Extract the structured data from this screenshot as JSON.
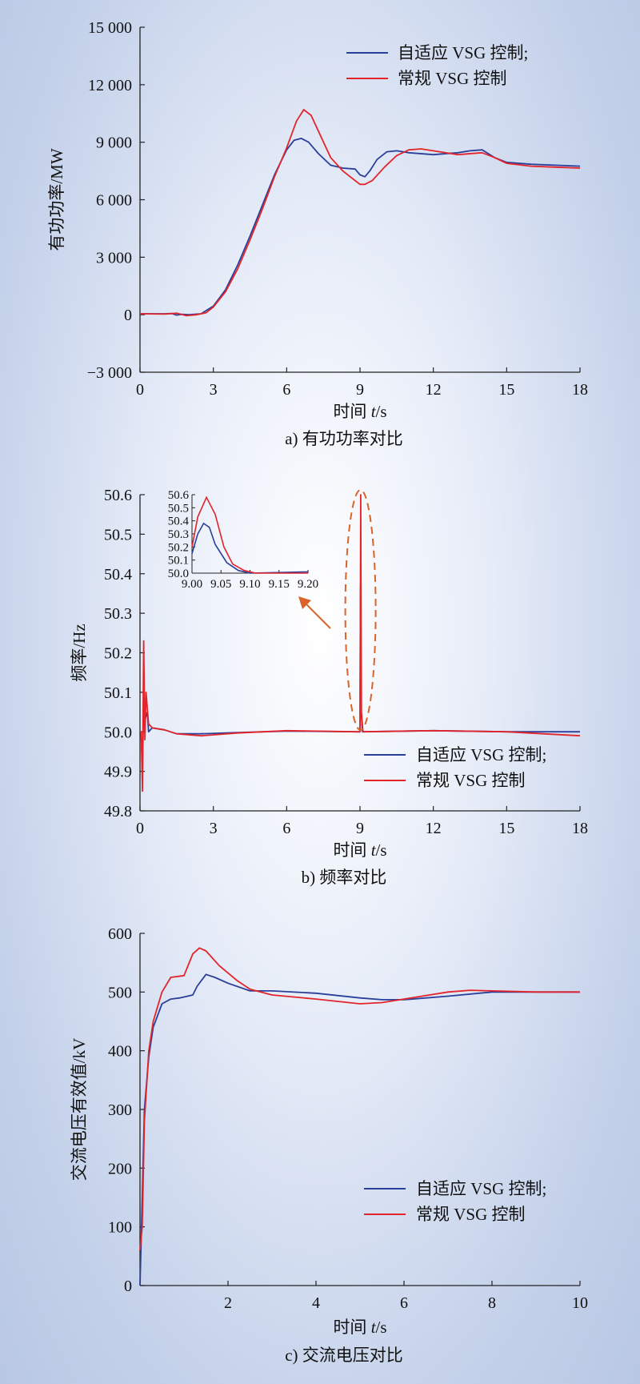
{
  "colors": {
    "adaptive": "#2a3f9a",
    "conventional": "#e3242b",
    "callout": "#d9642a"
  },
  "chart_data": [
    {
      "type": "line",
      "caption": "a) 有功功率对比",
      "xlabel_prefix": "时间 ",
      "xlabel_var": "t",
      "xlabel_unit": "/s",
      "ylabel": "有功功率/MW",
      "xlim": [
        0,
        18
      ],
      "ylim": [
        -3000,
        15000
      ],
      "xticks": [
        0,
        3,
        6,
        9,
        12,
        15,
        18
      ],
      "xtick_labels": [
        "0",
        "3",
        "6",
        "9",
        "12",
        "15",
        "18"
      ],
      "yticks": [
        -3000,
        0,
        3000,
        6000,
        9000,
        12000,
        15000
      ],
      "ytick_labels": [
        "−3 000",
        "0",
        "3 000",
        "6 000",
        "9 000",
        "12 000",
        "15 000"
      ],
      "legend_position": "top-right",
      "series": [
        {
          "name": "自适应 VSG 控制;",
          "color_key": "adaptive",
          "points": [
            [
              0,
              50
            ],
            [
              1,
              50
            ],
            [
              1.3,
              60
            ],
            [
              1.5,
              -20
            ],
            [
              1.7,
              20
            ],
            [
              2,
              0
            ],
            [
              2.5,
              50
            ],
            [
              3,
              450
            ],
            [
              3.5,
              1300
            ],
            [
              4,
              2600
            ],
            [
              4.5,
              4100
            ],
            [
              5,
              5700
            ],
            [
              5.5,
              7300
            ],
            [
              6,
              8600
            ],
            [
              6.3,
              9100
            ],
            [
              6.6,
              9200
            ],
            [
              6.9,
              9000
            ],
            [
              7.3,
              8400
            ],
            [
              7.8,
              7800
            ],
            [
              8.3,
              7650
            ],
            [
              8.8,
              7600
            ],
            [
              9,
              7300
            ],
            [
              9.2,
              7200
            ],
            [
              9.4,
              7500
            ],
            [
              9.7,
              8100
            ],
            [
              10.1,
              8500
            ],
            [
              10.5,
              8550
            ],
            [
              11,
              8450
            ],
            [
              12,
              8350
            ],
            [
              13,
              8450
            ],
            [
              13.5,
              8550
            ],
            [
              14,
              8600
            ],
            [
              14.5,
              8200
            ],
            [
              15,
              7950
            ],
            [
              16,
              7850
            ],
            [
              17,
              7800
            ],
            [
              18,
              7750
            ]
          ]
        },
        {
          "name": "常规 VSG 控制",
          "color_key": "conventional",
          "points": [
            [
              0,
              50
            ],
            [
              1,
              30
            ],
            [
              1.5,
              80
            ],
            [
              1.9,
              -50
            ],
            [
              2.3,
              0
            ],
            [
              2.7,
              100
            ],
            [
              3,
              400
            ],
            [
              3.5,
              1200
            ],
            [
              4,
              2400
            ],
            [
              4.5,
              3900
            ],
            [
              5,
              5500
            ],
            [
              5.5,
              7200
            ],
            [
              6,
              8700
            ],
            [
              6.4,
              10100
            ],
            [
              6.7,
              10700
            ],
            [
              7,
              10400
            ],
            [
              7.4,
              9300
            ],
            [
              7.8,
              8200
            ],
            [
              8.3,
              7500
            ],
            [
              8.7,
              7100
            ],
            [
              9,
              6800
            ],
            [
              9.2,
              6800
            ],
            [
              9.5,
              7000
            ],
            [
              10,
              7700
            ],
            [
              10.5,
              8300
            ],
            [
              11,
              8600
            ],
            [
              11.5,
              8650
            ],
            [
              12,
              8550
            ],
            [
              13,
              8350
            ],
            [
              14,
              8450
            ],
            [
              14.5,
              8200
            ],
            [
              15,
              7900
            ],
            [
              16,
              7750
            ],
            [
              17,
              7700
            ],
            [
              18,
              7650
            ]
          ]
        }
      ]
    },
    {
      "type": "line",
      "caption": "b) 频率对比",
      "xlabel_prefix": "时间 ",
      "xlabel_var": "t",
      "xlabel_unit": "/s",
      "ylabel": "频率/Hz",
      "xlim": [
        0,
        18
      ],
      "ylim": [
        49.8,
        50.6
      ],
      "xticks": [
        0,
        3,
        6,
        9,
        12,
        15,
        18
      ],
      "xtick_labels": [
        "0",
        "3",
        "6",
        "9",
        "12",
        "15",
        "18"
      ],
      "yticks": [
        49.8,
        49.9,
        50.0,
        50.1,
        50.2,
        50.3,
        50.4,
        50.5,
        50.6
      ],
      "ytick_labels": [
        "49.8",
        "49.9",
        "50.0",
        "50.1",
        "50.2",
        "50.3",
        "50.4",
        "50.5",
        "50.6"
      ],
      "legend_position": "bottom-right",
      "series": [
        {
          "name": "自适应 VSG 控制;",
          "color_key": "adaptive",
          "points": [
            [
              0,
              50.0
            ],
            [
              0.05,
              50.0
            ],
            [
              0.1,
              49.9
            ],
            [
              0.15,
              50.08
            ],
            [
              0.2,
              50.03
            ],
            [
              0.3,
              50.05
            ],
            [
              0.35,
              50.0
            ],
            [
              0.5,
              50.01
            ],
            [
              1,
              50.005
            ],
            [
              1.5,
              49.995
            ],
            [
              2.5,
              49.995
            ],
            [
              4,
              49.998
            ],
            [
              6,
              50.002
            ],
            [
              8.9,
              50.0
            ],
            [
              9.0,
              50.0
            ],
            [
              9.02,
              50.37
            ],
            [
              9.05,
              50.05
            ],
            [
              9.1,
              50.0
            ],
            [
              12,
              50.003
            ],
            [
              15,
              50.0
            ],
            [
              18,
              50.0
            ]
          ]
        },
        {
          "name": "常规 VSG 控制",
          "color_key": "conventional",
          "points": [
            [
              0,
              50.0
            ],
            [
              0.05,
              50.0
            ],
            [
              0.1,
              49.85
            ],
            [
              0.15,
              50.23
            ],
            [
              0.2,
              49.98
            ],
            [
              0.25,
              50.1
            ],
            [
              0.35,
              50.02
            ],
            [
              0.5,
              50.01
            ],
            [
              1,
              50.005
            ],
            [
              1.5,
              49.995
            ],
            [
              2.5,
              49.99
            ],
            [
              4,
              49.997
            ],
            [
              6,
              50.003
            ],
            [
              8.9,
              50.0
            ],
            [
              9.0,
              50.0
            ],
            [
              9.03,
              50.6
            ],
            [
              9.06,
              50.05
            ],
            [
              9.12,
              50.0
            ],
            [
              12,
              50.003
            ],
            [
              15,
              50.0
            ],
            [
              18,
              49.99
            ]
          ]
        }
      ],
      "inset": {
        "xlim": [
          9.0,
          9.2
        ],
        "ylim": [
          50.0,
          50.6
        ],
        "xticks": [
          9.0,
          9.05,
          9.1,
          9.15,
          9.2
        ],
        "xtick_labels": [
          "9.00",
          "9.05",
          "9.10",
          "9.15",
          "9.20"
        ],
        "yticks": [
          50.0,
          50.1,
          50.2,
          50.3,
          50.4,
          50.5,
          50.6
        ],
        "ytick_labels": [
          "50.0",
          "50.1",
          "50.2",
          "50.3",
          "50.4",
          "50.5",
          "50.6"
        ],
        "series": [
          {
            "color_key": "adaptive",
            "points": [
              [
                9.0,
                50.15
              ],
              [
                9.01,
                50.3
              ],
              [
                9.02,
                50.38
              ],
              [
                9.03,
                50.35
              ],
              [
                9.04,
                50.22
              ],
              [
                9.06,
                50.08
              ],
              [
                9.08,
                50.02
              ],
              [
                9.1,
                50.0
              ],
              [
                9.2,
                50.01
              ]
            ]
          },
          {
            "color_key": "conventional",
            "points": [
              [
                9.0,
                50.2
              ],
              [
                9.01,
                50.43
              ],
              [
                9.025,
                50.58
              ],
              [
                9.04,
                50.45
              ],
              [
                9.055,
                50.2
              ],
              [
                9.07,
                50.07
              ],
              [
                9.09,
                50.02
              ],
              [
                9.11,
                50.0
              ],
              [
                9.2,
                50.0
              ]
            ]
          }
        ]
      }
    },
    {
      "type": "line",
      "caption": "c) 交流电压对比",
      "xlabel_prefix": "时间 ",
      "xlabel_var": "t",
      "xlabel_unit": "/s",
      "ylabel": "交流电压有效值/kV",
      "xlim": [
        0,
        10
      ],
      "ylim": [
        0,
        600
      ],
      "xticks": [
        2,
        4,
        6,
        8,
        10
      ],
      "xtick_labels": [
        "2",
        "4",
        "6",
        "8",
        "10"
      ],
      "yticks": [
        0,
        100,
        200,
        300,
        400,
        500,
        600
      ],
      "ytick_labels": [
        "0",
        "100",
        "200",
        "300",
        "400",
        "500",
        "600"
      ],
      "legend_position": "bottom-right",
      "series": [
        {
          "name": "自适应 VSG 控制;",
          "color_key": "adaptive",
          "points": [
            [
              0,
              0
            ],
            [
              0.05,
              150
            ],
            [
              0.1,
              300
            ],
            [
              0.2,
              390
            ],
            [
              0.3,
              440
            ],
            [
              0.5,
              480
            ],
            [
              0.7,
              488
            ],
            [
              0.9,
              490
            ],
            [
              1.2,
              495
            ],
            [
              1.3,
              510
            ],
            [
              1.5,
              530
            ],
            [
              1.7,
              525
            ],
            [
              2,
              515
            ],
            [
              2.5,
              502
            ],
            [
              3,
              502
            ],
            [
              4,
              498
            ],
            [
              5,
              490
            ],
            [
              5.5,
              487
            ],
            [
              6,
              487
            ],
            [
              7,
              493
            ],
            [
              8,
              500
            ],
            [
              9,
              500
            ],
            [
              10,
              500
            ]
          ]
        },
        {
          "name": "常规 VSG 控制",
          "color_key": "conventional",
          "points": [
            [
              0,
              60
            ],
            [
              0.05,
              100
            ],
            [
              0.1,
              280
            ],
            [
              0.2,
              400
            ],
            [
              0.3,
              450
            ],
            [
              0.5,
              500
            ],
            [
              0.7,
              525
            ],
            [
              1.0,
              528
            ],
            [
              1.2,
              565
            ],
            [
              1.35,
              575
            ],
            [
              1.5,
              570
            ],
            [
              1.8,
              545
            ],
            [
              2.2,
              520
            ],
            [
              2.5,
              505
            ],
            [
              3,
              495
            ],
            [
              4,
              488
            ],
            [
              5,
              480
            ],
            [
              5.5,
              482
            ],
            [
              6,
              488
            ],
            [
              7,
              500
            ],
            [
              7.5,
              503
            ],
            [
              8,
              502
            ],
            [
              9,
              500
            ],
            [
              10,
              500
            ]
          ]
        }
      ]
    }
  ]
}
